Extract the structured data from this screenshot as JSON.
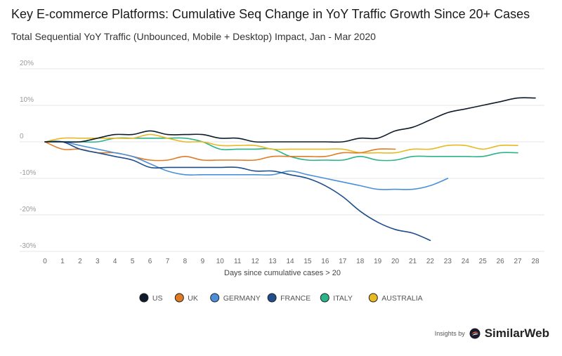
{
  "chart_data": {
    "type": "line",
    "title": "Key E-commerce Platforms: Cumulative Seq Change in YoY Traffic Growth Since 20+ Cases",
    "subtitle": "Total Sequential YoY Traffic (Unbounced, Mobile + Desktop) Impact, Jan - Mar 2020",
    "xlabel": "Days since cumulative cases > 20",
    "ylabel": "",
    "xlim": [
      0,
      28
    ],
    "ylim": [
      -30,
      20
    ],
    "x_ticks": [
      "0",
      "1",
      "2",
      "3",
      "4",
      "5",
      "6",
      "7",
      "8",
      "9",
      "10",
      "11",
      "12",
      "13",
      "14",
      "15",
      "16",
      "17",
      "18",
      "19",
      "20",
      "21",
      "22",
      "23",
      "24",
      "25",
      "26",
      "27",
      "28"
    ],
    "y_ticks": [
      {
        "value": 20,
        "label": "20%"
      },
      {
        "value": 10,
        "label": "10%"
      },
      {
        "value": 0,
        "label": "0"
      },
      {
        "value": -10,
        "label": "-10%"
      },
      {
        "value": -20,
        "label": "-20%"
      },
      {
        "value": -30,
        "label": "-30%"
      }
    ],
    "grid": true,
    "legend_position": "bottom-center",
    "series": [
      {
        "name": "US",
        "color": "#0d1b2a",
        "values": [
          0,
          0,
          0,
          1,
          2,
          2,
          3,
          2,
          2,
          2,
          1,
          1,
          0,
          0,
          0,
          0,
          0,
          0,
          1,
          1,
          3,
          4,
          6,
          8,
          9,
          10,
          11,
          12,
          12
        ]
      },
      {
        "name": "UK",
        "color": "#e07b25",
        "values": [
          0,
          -2,
          -2,
          -3,
          -3,
          -4,
          -5,
          -5,
          -4,
          -5,
          -5,
          -5,
          -5,
          -4,
          -4,
          -4,
          -4,
          -3,
          -3,
          -2,
          -2
        ]
      },
      {
        "name": "GERMANY",
        "color": "#4a90d9",
        "values": [
          0,
          0,
          -1,
          -2,
          -3,
          -4,
          -6,
          -8,
          -9,
          -9,
          -9,
          -9,
          -9,
          -9,
          -8,
          -9,
          -10,
          -11,
          -12,
          -13,
          -13,
          -13,
          -12,
          -10
        ]
      },
      {
        "name": "FRANCE",
        "color": "#1f4e8c",
        "values": [
          0,
          0,
          -2,
          -3,
          -4,
          -5,
          -7,
          -7,
          -7,
          -7,
          -7,
          -7,
          -8,
          -8,
          -9,
          -10,
          -12,
          -15,
          -19,
          -22,
          -24,
          -25,
          -27
        ]
      },
      {
        "name": "ITALY",
        "color": "#2bb38a",
        "values": [
          0,
          0,
          0,
          0,
          1,
          1,
          1,
          1,
          1,
          0,
          -2,
          -2,
          -2,
          -2,
          -4,
          -5,
          -5,
          -5,
          -4,
          -5,
          -5,
          -4,
          -4,
          -4,
          -4,
          -4,
          -3,
          -3
        ]
      },
      {
        "name": "AUSTRALIA",
        "color": "#e8b923",
        "values": [
          0,
          1,
          1,
          1,
          1,
          1,
          2,
          1,
          0,
          0,
          -1,
          -1,
          -1,
          -2,
          -2,
          -2,
          -2,
          -2,
          -3,
          -3,
          -3,
          -2,
          -2,
          -1,
          -1,
          -2,
          -1,
          -1
        ]
      }
    ]
  },
  "credit": {
    "prefix": "Insights by",
    "brand": "SimilarWeb"
  }
}
